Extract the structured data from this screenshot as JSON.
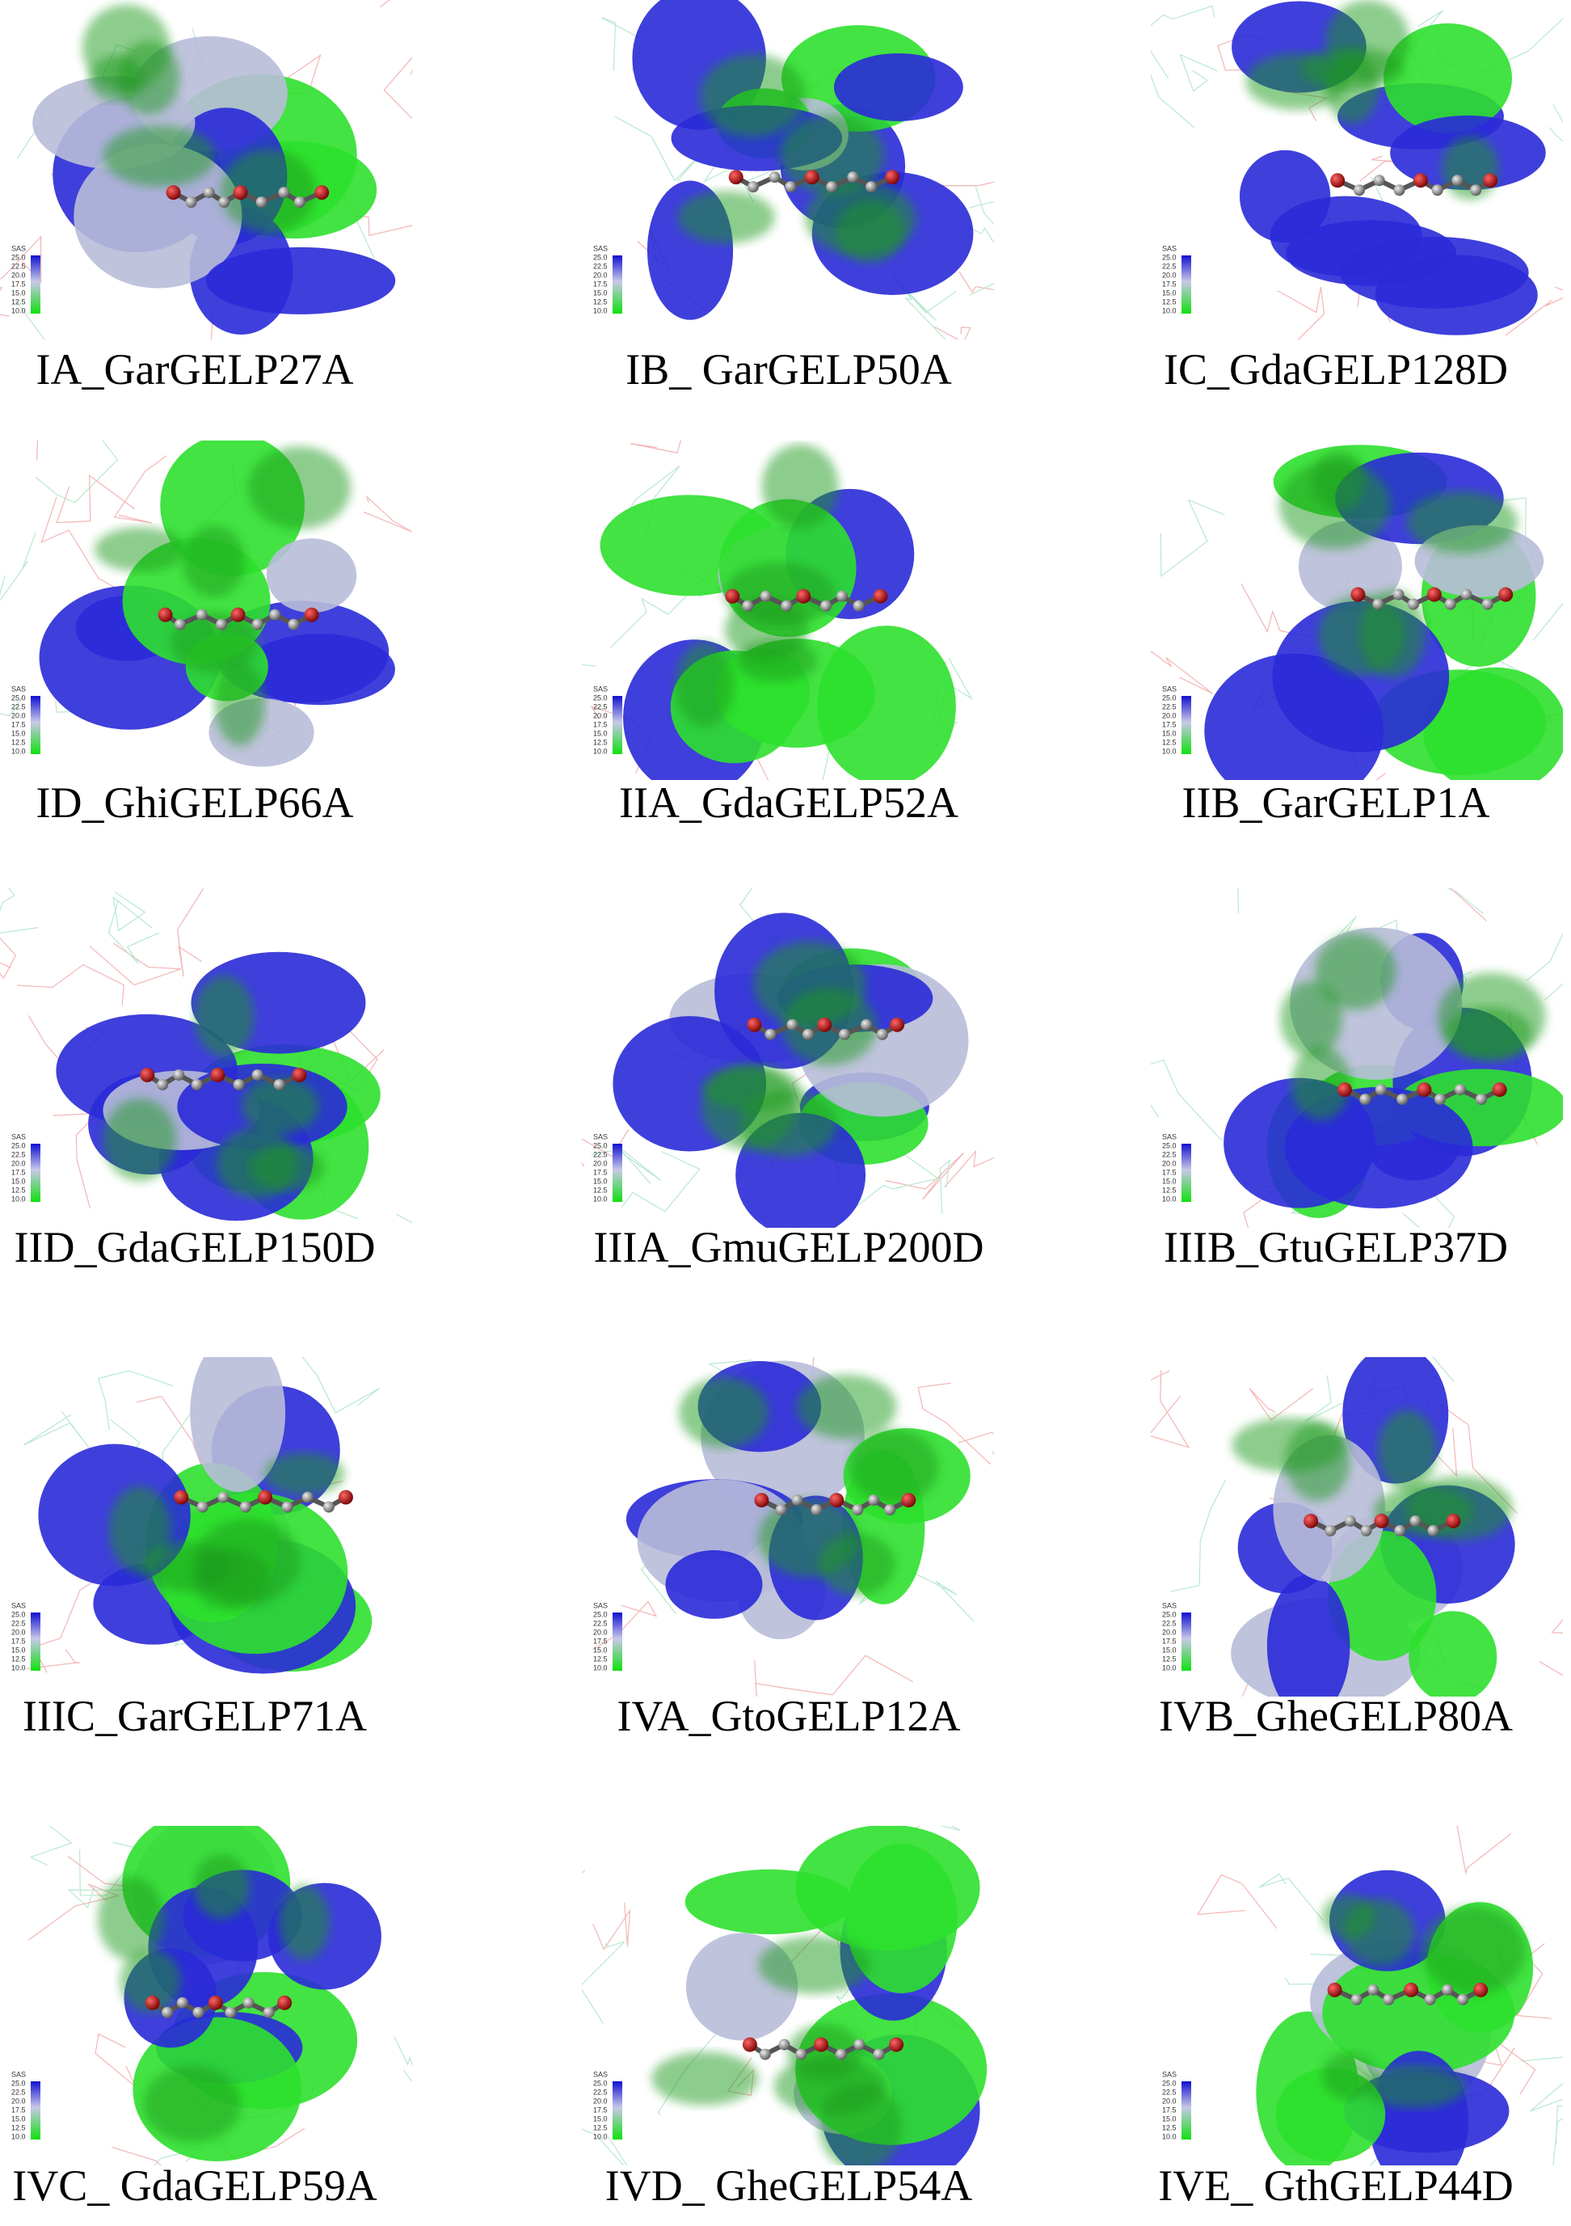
{
  "panels": [
    {
      "label": "IA_GarGELP27A"
    },
    {
      "label": "IB_ GarGELP50A"
    },
    {
      "label": "IC_GdaGELP128D"
    },
    {
      "label": "ID_GhiGELP66A"
    },
    {
      "label": "IIA_GdaGELP52A"
    },
    {
      "label": "IIB_GarGELP1A"
    },
    {
      "label": "IID_GdaGELP150D"
    },
    {
      "label": "IIIA_GmuGELP200D"
    },
    {
      "label": "IIIB_GtuGELP37D"
    },
    {
      "label": "IIIC_GarGELP71A"
    },
    {
      "label": "IVA_GtoGELP12A"
    },
    {
      "label": "IVB_GheGELP80A"
    },
    {
      "label": "IVC_ GdaGELP59A"
    },
    {
      "label": "IVD_ GheGELP54A"
    },
    {
      "label": "IVE_ GthGELP44D"
    }
  ],
  "legend": {
    "title": "SAS",
    "ticks": [
      "25.0",
      "22.5",
      "20.0",
      "17.5",
      "15.0",
      "12.5",
      "10.0"
    ]
  }
}
